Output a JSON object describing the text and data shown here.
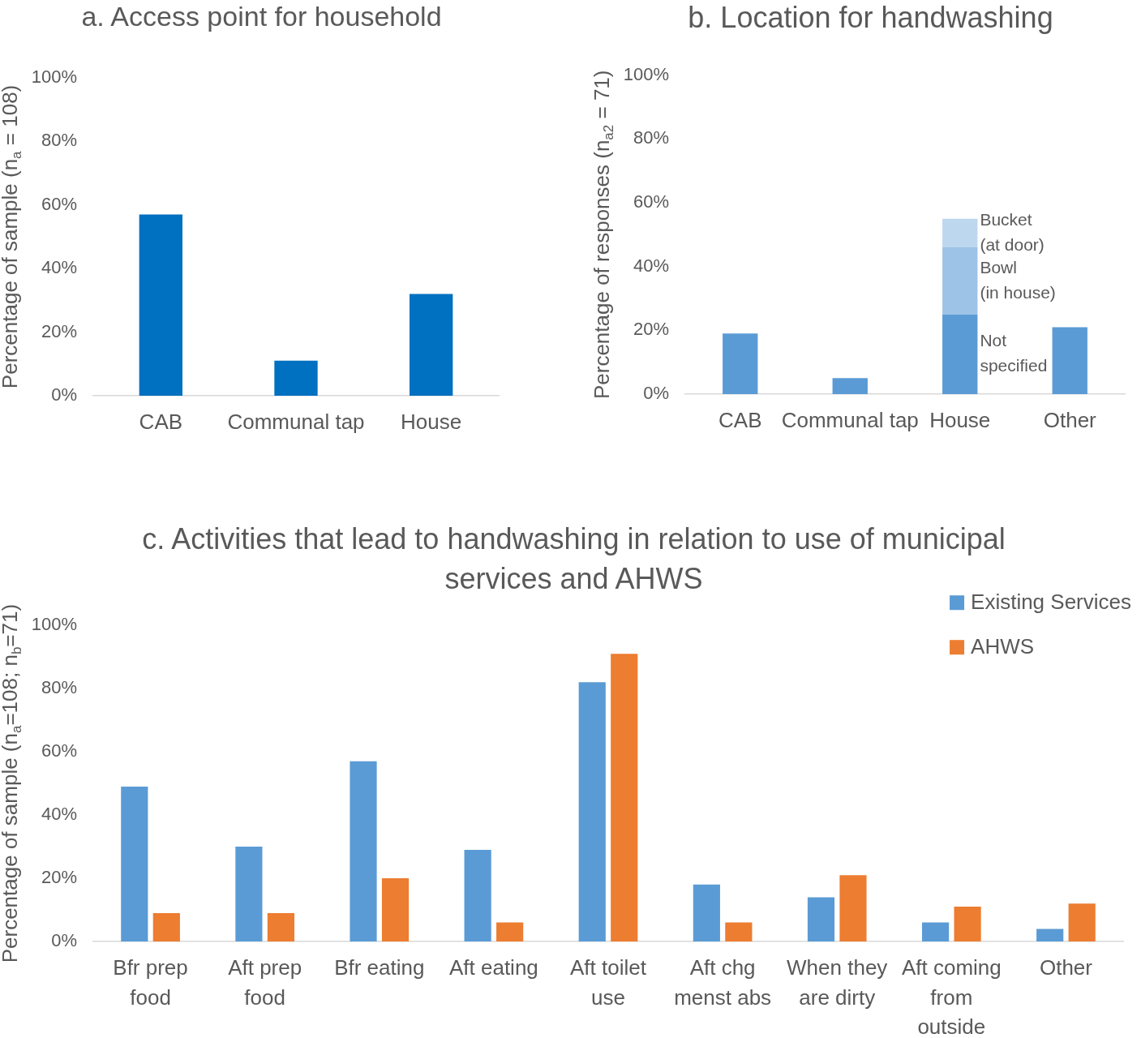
{
  "chart_data": [
    {
      "type": "bar",
      "title": "a. Access point for household",
      "ylabel": "Percentage of sample (n$_{a}$ = 108)",
      "categories": [
        "CAB",
        "Communal tap",
        "House"
      ],
      "values": [
        57,
        11,
        32
      ],
      "color": "#0070c0",
      "ylim": [
        0,
        100
      ],
      "yticks": [
        {
          "value": 0,
          "label": "0%"
        },
        {
          "value": 20,
          "label": "20%"
        },
        {
          "value": 40,
          "label": "40%"
        },
        {
          "value": 60,
          "label": "60%"
        },
        {
          "value": 80,
          "label": "80%"
        },
        {
          "value": 100,
          "label": "100%"
        }
      ]
    },
    {
      "type": "bar",
      "stacked": true,
      "title": "b. Location for handwashing",
      "ylabel": "Percentage of responses (n$_{a2}$ = 71)",
      "categories": [
        "CAB",
        "Communal tap",
        "House",
        "Other"
      ],
      "series": [
        {
          "color": "#5b9bd5",
          "values": [
            19,
            5,
            null,
            21
          ]
        },
        {
          "name": "Not specified",
          "color": "#5b9bd5",
          "values": [
            null,
            null,
            25,
            null
          ]
        },
        {
          "name": "Bowl (in house)",
          "color": "#9dc3e6",
          "values": [
            null,
            null,
            21,
            null
          ]
        },
        {
          "name": "Bucket (at door)",
          "color": "#bdd7ee",
          "values": [
            null,
            null,
            9,
            null
          ]
        }
      ],
      "ylim": [
        0,
        100
      ],
      "yticks": [
        {
          "value": 0,
          "label": "0%"
        },
        {
          "value": 20,
          "label": "20%"
        },
        {
          "value": 40,
          "label": "40%"
        },
        {
          "value": 60,
          "label": "60%"
        },
        {
          "value": 80,
          "label": "80%"
        },
        {
          "value": 100,
          "label": "100%"
        }
      ]
    },
    {
      "type": "bar",
      "title": "c. Activities that lead to handwashing in relation to use of municipal services and AHWS",
      "ylabel": "Percentage of sample (n$_{a}$=108; n$_{b}$=71)",
      "categories": [
        "Bfr prep food",
        "Aft prep food",
        "Bfr eating",
        "Aft eating",
        "Aft toilet use",
        "Aft chg menst abs",
        "When they are dirty",
        "Aft coming from outside",
        "Other"
      ],
      "series": [
        {
          "name": "Existing Services",
          "color": "#5b9bd5",
          "values": [
            49,
            30,
            57,
            29,
            82,
            18,
            14,
            6,
            4
          ]
        },
        {
          "name": "AHWS",
          "color": "#ed7d31",
          "values": [
            9,
            9,
            20,
            6,
            91,
            6,
            21,
            11,
            12
          ]
        }
      ],
      "ylim": [
        0,
        100
      ],
      "yticks": [
        {
          "value": 0,
          "label": "0%"
        },
        {
          "value": 20,
          "label": "20%"
        },
        {
          "value": 40,
          "label": "40%"
        },
        {
          "value": 60,
          "label": "60%"
        },
        {
          "value": 80,
          "label": "80%"
        },
        {
          "value": 100,
          "label": "100%"
        }
      ],
      "legend": "top right"
    }
  ]
}
